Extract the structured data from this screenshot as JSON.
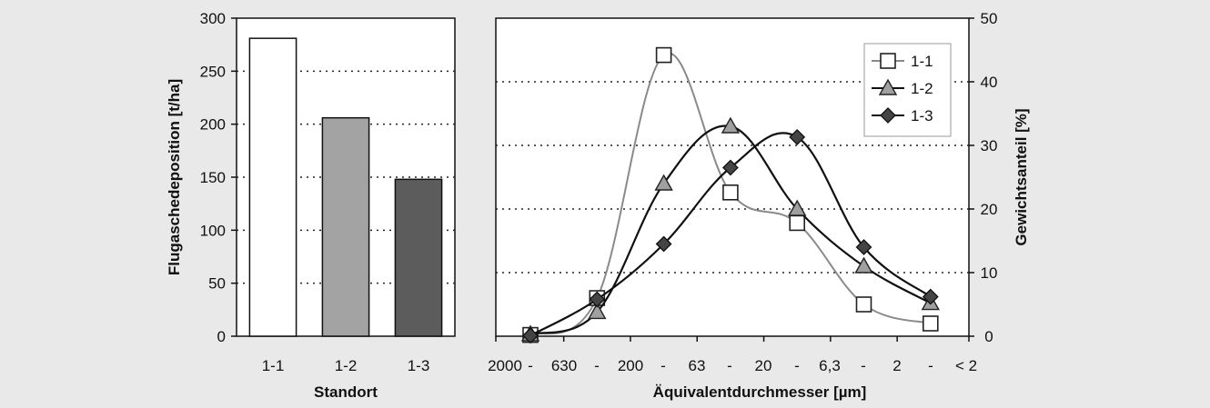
{
  "colors": {
    "background": "#e9e9e9",
    "plot_bg": "#ffffff",
    "bar_1_1": "#ffffff",
    "bar_1_2": "#a3a3a3",
    "bar_1_3": "#5c5c5c",
    "series_1_1": "#8a8a8a",
    "series_1_2": "#111111",
    "series_1_3": "#111111",
    "marker_triangle": "#a0a0a0",
    "marker_diamond": "#444444"
  },
  "chart_data": [
    {
      "type": "bar",
      "categories": [
        "1-1",
        "1-2",
        "1-3"
      ],
      "values": [
        281,
        206,
        148
      ],
      "title": "",
      "xlabel": "Standort",
      "ylabel": "Flugaschedeposition [t/ha]",
      "ylim": [
        0,
        300
      ],
      "yticks": [
        "0",
        "50",
        "100",
        "150",
        "200",
        "250",
        "300"
      ],
      "grid": "horizontal dotted",
      "legend": "none"
    },
    {
      "type": "line",
      "xlabel": "Äquivalentdurchmesser [µm]",
      "ylabel": "Gewichtsanteil [%]",
      "y_axis_side": "right",
      "ylim": [
        0,
        50
      ],
      "yticks": [
        "0",
        "10",
        "20",
        "30",
        "40",
        "50"
      ],
      "x_tick_labels": [
        "2000",
        "-",
        "630",
        "-",
        "200",
        "-",
        "63",
        "-",
        "20",
        "-",
        "6,3",
        "-",
        "2",
        "-",
        "< 2"
      ],
      "categories": [
        "2000 - 630",
        "630 - 200",
        "200 - 63",
        "63 - 20",
        "20 - 6,3",
        "6,3 - 2",
        "2 - < 2"
      ],
      "series": [
        {
          "name": "1-1",
          "marker": "square",
          "values": [
            0.2,
            6.0,
            44.2,
            22.6,
            17.8,
            5.0,
            2.0
          ]
        },
        {
          "name": "1-2",
          "marker": "triangle",
          "values": [
            0.3,
            3.8,
            24.0,
            33.0,
            20.0,
            11.0,
            5.2
          ]
        },
        {
          "name": "1-3",
          "marker": "diamond",
          "values": [
            0.1,
            5.8,
            14.5,
            26.5,
            31.3,
            14.0,
            6.2
          ]
        }
      ],
      "grid": "horizontal dotted",
      "legend": "top-right"
    }
  ]
}
